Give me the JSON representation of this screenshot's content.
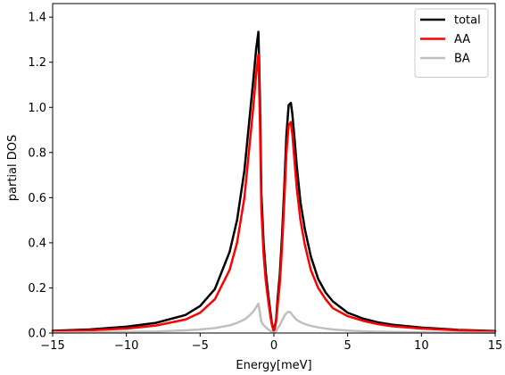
{
  "chart_data": {
    "type": "line",
    "title": "",
    "xlabel": "Energy[meV]",
    "ylabel": "partial DOS",
    "xlim": [
      -15,
      15
    ],
    "ylim": [
      0,
      1.46
    ],
    "xticks": [
      -15,
      -10,
      -5,
      0,
      5,
      10,
      15
    ],
    "xtick_labels": [
      "−15",
      "−10",
      "−5",
      "0",
      "5",
      "10",
      "15"
    ],
    "yticks": [
      0.0,
      0.2,
      0.4,
      0.6,
      0.8,
      1.0,
      1.2,
      1.4
    ],
    "ytick_labels": [
      "0.0",
      "0.2",
      "0.4",
      "0.6",
      "0.8",
      "1.0",
      "1.2",
      "1.4"
    ],
    "grid": false,
    "legend_position": "top-right",
    "series": [
      {
        "name": "total",
        "color": "#000000",
        "x": [
          -15,
          -12.5,
          -10,
          -8,
          -6,
          -5,
          -4,
          -3,
          -2.5,
          -2,
          -1.7,
          -1.4,
          -1.2,
          -1.05,
          -0.95,
          -0.85,
          -0.7,
          -0.55,
          -0.4,
          -0.25,
          -0.15,
          0,
          0.15,
          0.25,
          0.4,
          0.55,
          0.7,
          0.85,
          1.0,
          1.15,
          1.25,
          1.4,
          1.55,
          1.8,
          2.1,
          2.5,
          3,
          3.5,
          4,
          5,
          6,
          7,
          8,
          10,
          12.5,
          15
        ],
        "y": [
          0.01,
          0.016,
          0.028,
          0.045,
          0.08,
          0.12,
          0.195,
          0.36,
          0.5,
          0.72,
          0.92,
          1.12,
          1.26,
          1.335,
          1.05,
          0.62,
          0.4,
          0.27,
          0.18,
          0.1,
          0.05,
          0.005,
          0.06,
          0.15,
          0.26,
          0.43,
          0.64,
          0.88,
          1.01,
          1.02,
          0.97,
          0.86,
          0.74,
          0.58,
          0.46,
          0.34,
          0.24,
          0.18,
          0.14,
          0.09,
          0.065,
          0.048,
          0.037,
          0.024,
          0.014,
          0.009
        ]
      },
      {
        "name": "AA",
        "color": "#ff0000",
        "x": [
          -15,
          -12.5,
          -10,
          -8,
          -6,
          -5,
          -4,
          -3,
          -2.5,
          -2,
          -1.7,
          -1.4,
          -1.2,
          -1.05,
          -0.95,
          -0.85,
          -0.7,
          -0.55,
          -0.4,
          -0.25,
          -0.15,
          0,
          0.15,
          0.25,
          0.4,
          0.55,
          0.7,
          0.85,
          1.0,
          1.15,
          1.25,
          1.4,
          1.55,
          1.8,
          2.1,
          2.5,
          3,
          3.5,
          4,
          5,
          6,
          7,
          8,
          10,
          12.5,
          15
        ],
        "y": [
          0.008,
          0.012,
          0.02,
          0.033,
          0.06,
          0.09,
          0.15,
          0.28,
          0.4,
          0.6,
          0.8,
          1.0,
          1.15,
          1.235,
          0.95,
          0.55,
          0.35,
          0.23,
          0.15,
          0.08,
          0.04,
          0.003,
          0.05,
          0.12,
          0.22,
          0.38,
          0.58,
          0.8,
          0.92,
          0.935,
          0.88,
          0.76,
          0.64,
          0.5,
          0.39,
          0.28,
          0.2,
          0.15,
          0.11,
          0.075,
          0.055,
          0.04,
          0.03,
          0.02,
          0.012,
          0.007
        ]
      },
      {
        "name": "BA",
        "color": "#bfbfbf",
        "x": [
          -15,
          -12.5,
          -10,
          -8,
          -6,
          -5,
          -4,
          -3,
          -2.5,
          -2,
          -1.7,
          -1.4,
          -1.2,
          -1.05,
          -0.95,
          -0.85,
          -0.7,
          -0.55,
          -0.4,
          -0.25,
          -0.15,
          0,
          0.15,
          0.25,
          0.4,
          0.55,
          0.7,
          0.85,
          1.0,
          1.15,
          1.25,
          1.4,
          1.55,
          1.8,
          2.1,
          2.5,
          3,
          3.5,
          4,
          5,
          6,
          7,
          8,
          10,
          12.5,
          15
        ],
        "y": [
          0.002,
          0.003,
          0.005,
          0.007,
          0.012,
          0.016,
          0.022,
          0.034,
          0.045,
          0.06,
          0.075,
          0.095,
          0.115,
          0.13,
          0.09,
          0.05,
          0.035,
          0.025,
          0.017,
          0.01,
          0.005,
          0.001,
          0.008,
          0.02,
          0.035,
          0.055,
          0.075,
          0.088,
          0.095,
          0.09,
          0.08,
          0.068,
          0.058,
          0.048,
          0.04,
          0.032,
          0.025,
          0.02,
          0.016,
          0.011,
          0.008,
          0.006,
          0.005,
          0.003,
          0.002,
          0.001
        ]
      }
    ]
  }
}
